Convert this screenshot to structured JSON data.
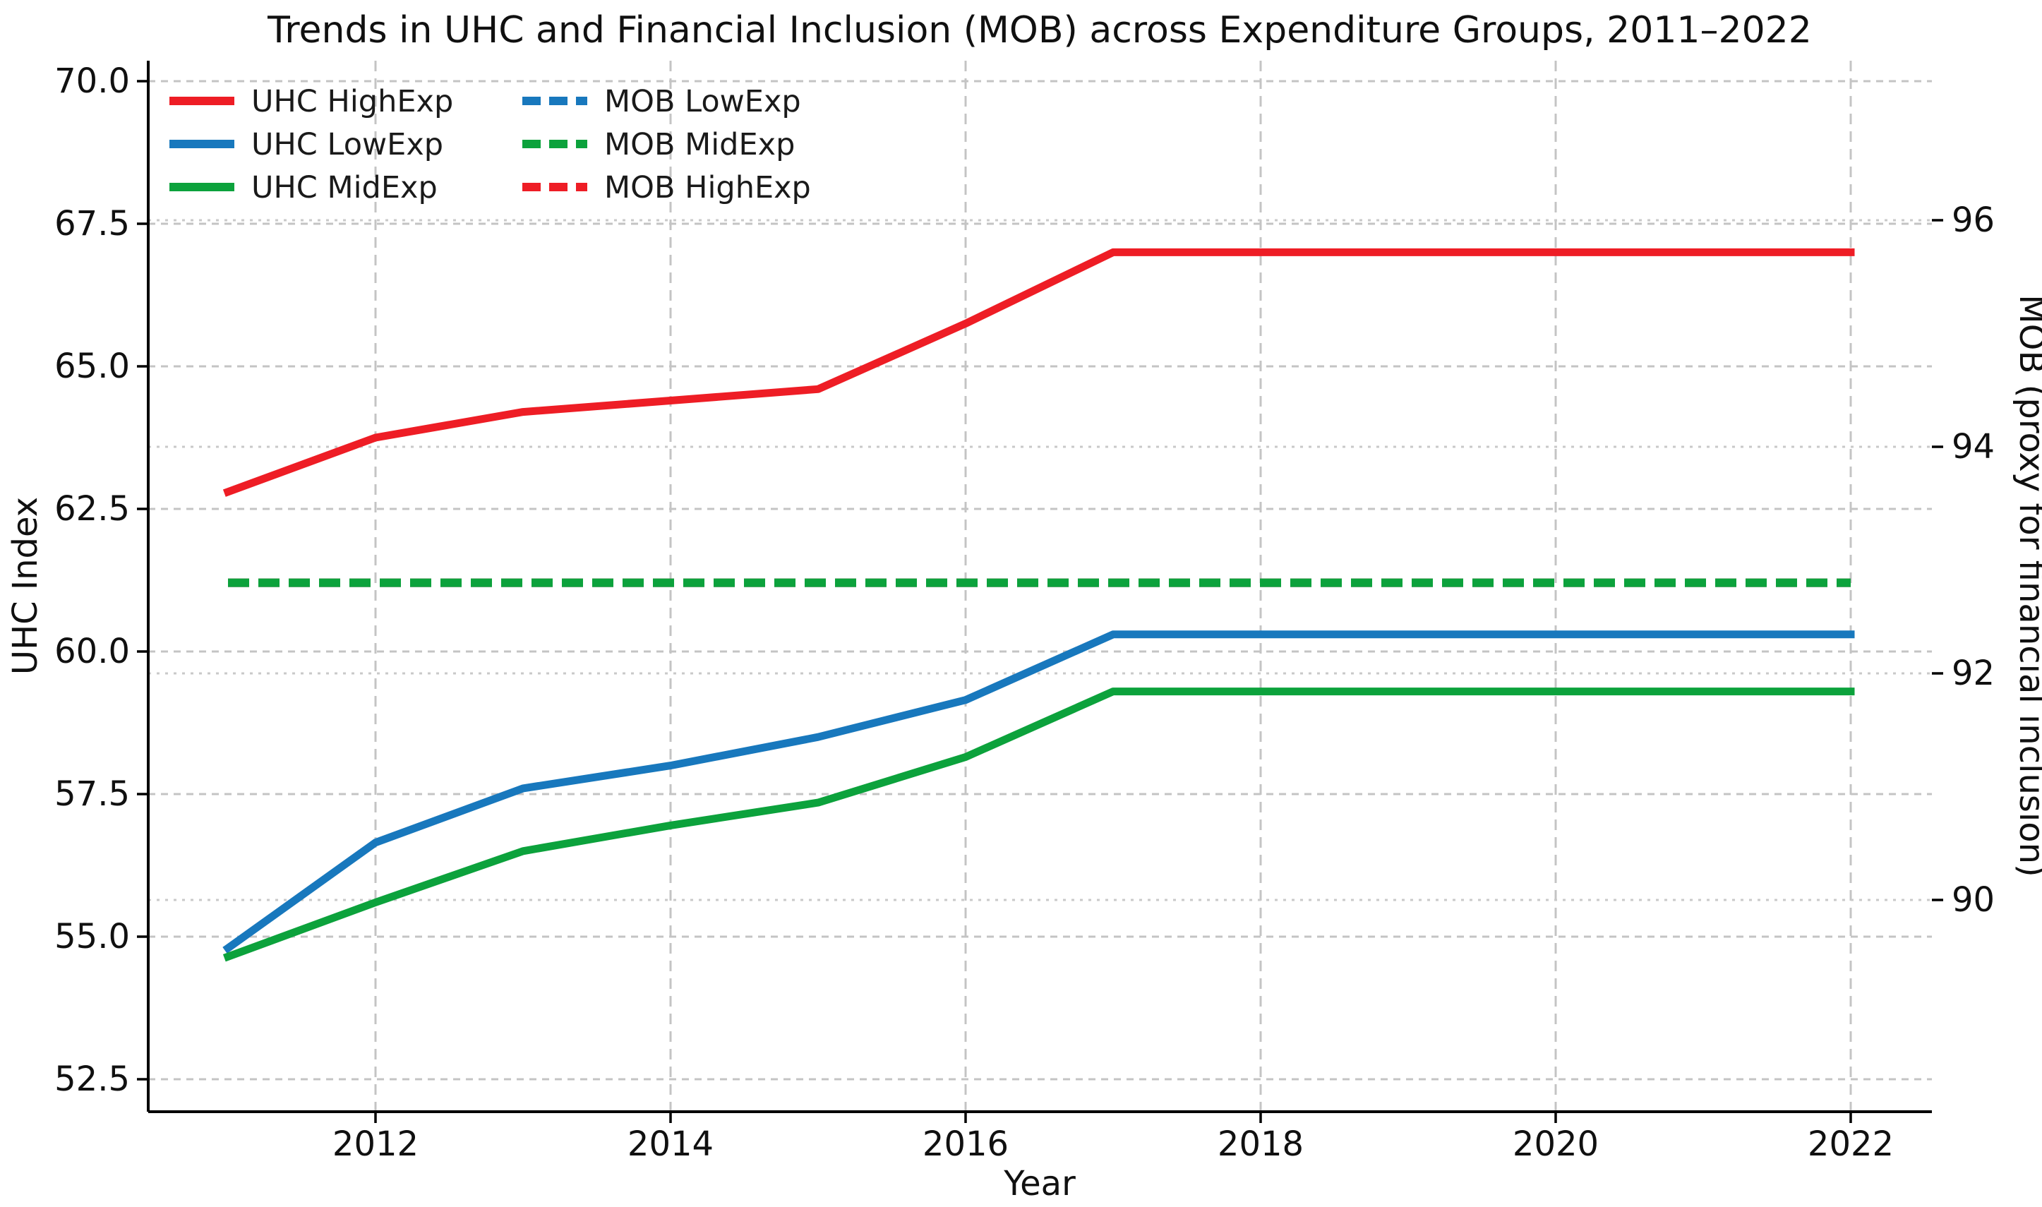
{
  "title": "Trends in UHC and Financial Inclusion (MOB) across Expenditure Groups, 2011–2022",
  "colors": {
    "red": "#ee1d25",
    "blue": "#1878bd",
    "green": "#0ca23c",
    "grid_dashed": "#c4c4c4",
    "grid_dotted": "#c9c9c9",
    "spine": "#000000",
    "background": "#ffffff"
  },
  "chart_data": {
    "type": "line",
    "title": "Trends in UHC and Financial Inclusion (MOB) across Expenditure Groups, 2011–2022",
    "xlabel": "Year",
    "ylabel_left": "UHC Index",
    "ylabel_right": "MOB (proxy for financial inclusion)",
    "years": [
      2011,
      2012,
      2013,
      2014,
      2015,
      2016,
      2017,
      2018,
      2019,
      2020,
      2021,
      2022
    ],
    "x_ticks": [
      {
        "label": "2012",
        "value": 2012
      },
      {
        "label": "2014",
        "value": 2014
      },
      {
        "label": "2016",
        "value": 2016
      },
      {
        "label": "2018",
        "value": 2018
      },
      {
        "label": "2020",
        "value": 2020
      },
      {
        "label": "2022",
        "value": 2022
      }
    ],
    "y_left_ticks": [
      {
        "label": "52.5",
        "value": 52.5
      },
      {
        "label": "55.0",
        "value": 55.0
      },
      {
        "label": "57.5",
        "value": 57.5
      },
      {
        "label": "60.0",
        "value": 60.0
      },
      {
        "label": "62.5",
        "value": 62.5
      },
      {
        "label": "65.0",
        "value": 65.0
      },
      {
        "label": "67.5",
        "value": 67.5
      },
      {
        "label": "70.0",
        "value": 70.0
      }
    ],
    "y_right_ticks": [
      {
        "label": "90",
        "value": 90
      },
      {
        "label": "92",
        "value": 92
      },
      {
        "label": "94",
        "value": 94
      },
      {
        "label": "96",
        "value": 96
      }
    ],
    "axes": {
      "xlim": [
        2010.46,
        2022.55
      ],
      "ylim_left": [
        51.93,
        70.36
      ],
      "ylim_right": [
        88.13,
        97.41
      ],
      "grid": true,
      "legend_position": "upper left"
    },
    "series": [
      {
        "name": "UHC HighExp",
        "axis": "left",
        "style": "solid",
        "color_key": "red",
        "values": [
          62.8,
          63.75,
          64.2,
          64.4,
          64.6,
          65.75,
          67.0,
          67.0,
          67.0,
          67.0,
          67.0,
          67.0
        ]
      },
      {
        "name": "UHC LowExp",
        "axis": "left",
        "style": "solid",
        "color_key": "blue",
        "values": [
          54.8,
          56.65,
          57.6,
          58.0,
          58.5,
          59.15,
          60.3,
          60.3,
          60.3,
          60.3,
          60.3,
          60.3
        ]
      },
      {
        "name": "UHC MidExp",
        "axis": "left",
        "style": "solid",
        "color_key": "green",
        "values": [
          54.65,
          55.6,
          56.5,
          56.95,
          57.35,
          58.15,
          59.3,
          59.3,
          59.3,
          59.3,
          59.3,
          59.3
        ]
      },
      {
        "name": "MOB LowExp",
        "axis": "right",
        "style": "dashed",
        "color_key": "blue",
        "values": [
          92.8,
          92.8,
          92.8,
          92.8,
          92.8,
          92.8,
          92.8,
          92.8,
          92.8,
          92.8,
          92.8,
          92.8
        ]
      },
      {
        "name": "MOB HighExp",
        "axis": "right",
        "style": "dashed",
        "color_key": "red",
        "values": [
          92.8,
          92.8,
          92.8,
          92.8,
          92.8,
          92.8,
          92.8,
          92.8,
          92.8,
          92.8,
          92.8,
          92.8
        ]
      },
      {
        "name": "MOB MidExp",
        "axis": "right",
        "style": "dashed",
        "color_key": "green",
        "values": [
          92.8,
          92.8,
          92.8,
          92.8,
          92.8,
          92.8,
          92.8,
          92.8,
          92.8,
          92.8,
          92.8,
          92.8
        ]
      }
    ],
    "legend": {
      "columns": [
        [
          "UHC HighExp",
          "UHC LowExp",
          "UHC MidExp"
        ],
        [
          "MOB LowExp",
          "MOB MidExp",
          "MOB HighExp"
        ]
      ]
    }
  }
}
